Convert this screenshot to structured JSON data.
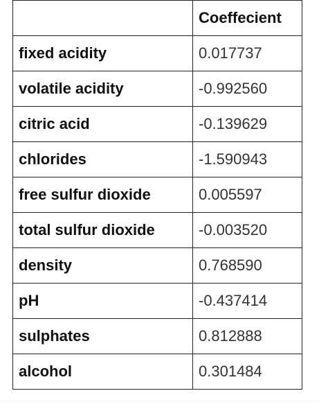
{
  "table": {
    "header": {
      "name": "",
      "value": "Coeffecient"
    },
    "rows": [
      {
        "name": "fixed acidity",
        "value": "0.017737"
      },
      {
        "name": "volatile acidity",
        "value": "-0.992560"
      },
      {
        "name": "citric acid",
        "value": "-0.139629"
      },
      {
        "name": "chlorides",
        "value": "-1.590943"
      },
      {
        "name": "free sulfur dioxide",
        "value": "0.005597"
      },
      {
        "name": "total sulfur dioxide",
        "value": "-0.003520"
      },
      {
        "name": "density",
        "value": "0.768590"
      },
      {
        "name": "pH",
        "value": "-0.437414"
      },
      {
        "name": "sulphates",
        "value": "0.812888"
      },
      {
        "name": "alcohol",
        "value": "0.301484"
      }
    ]
  }
}
